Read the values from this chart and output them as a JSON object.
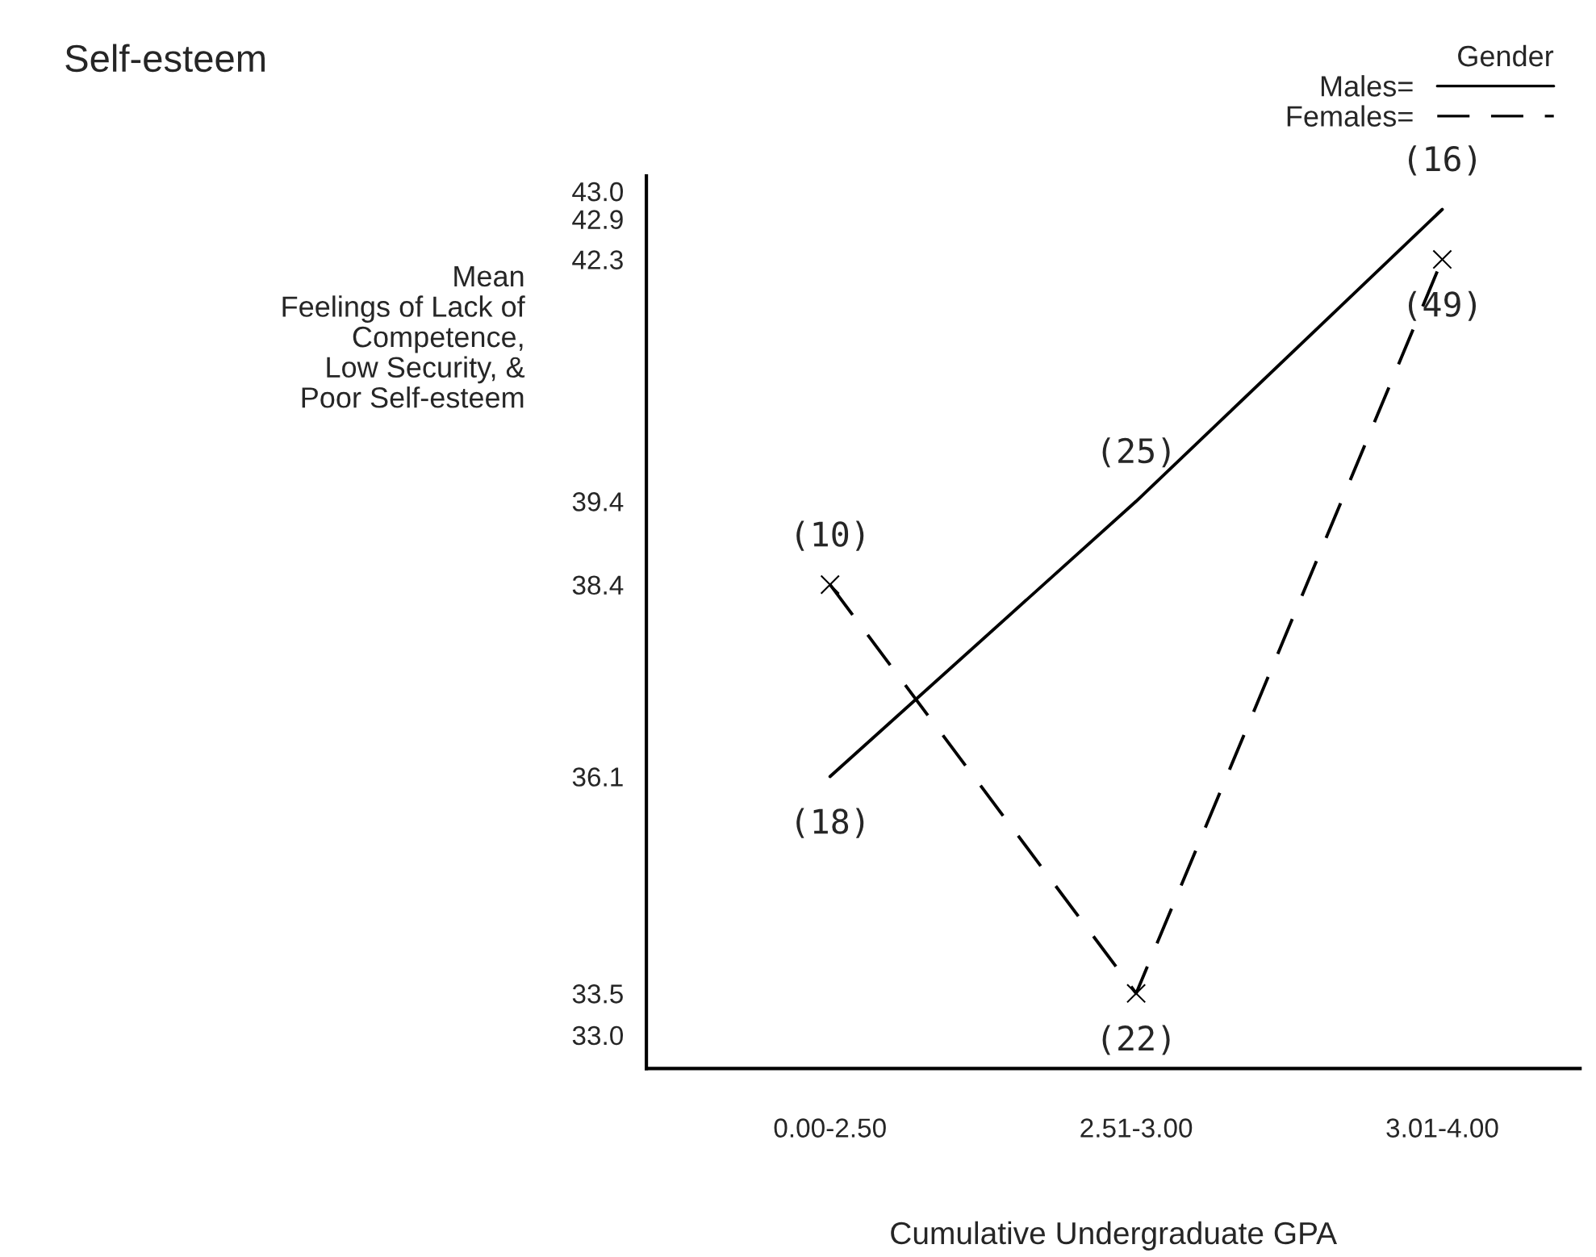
{
  "chart_data": {
    "type": "line",
    "title": "Self-esteem",
    "xlabel": "Cumulative Undergraduate GPA",
    "ylabel": "Mean\nFeelings of Lack of\nCompetence,\nLow Security, &\nPoor Self-esteem",
    "legend_title": "Gender",
    "legend": "top right",
    "categories": [
      "0.00-2.50",
      "2.51-3.00",
      "3.01-4.00"
    ],
    "series": [
      {
        "name": "Males=",
        "color": "#000000",
        "values": [
          36.1,
          39.4,
          42.9
        ],
        "line_style": "solid",
        "marker": "none"
      },
      {
        "name": "Females=",
        "color": "#000000",
        "values": [
          38.4,
          33.5,
          42.3
        ],
        "line_style": "dashed",
        "marker": "cross"
      }
    ],
    "ylim": [
      32.6,
      43.3
    ],
    "yticks": [
      {
        "value": 33.0,
        "label": "33.0"
      },
      {
        "value": 33.5,
        "label": "33.5"
      },
      {
        "value": 36.1,
        "label": "36.1"
      },
      {
        "value": 38.4,
        "label": "38.4"
      },
      {
        "value": 39.4,
        "label": "39.4"
      },
      {
        "value": 42.3,
        "label": "42.3"
      },
      {
        "value": 42.9,
        "label": "42.9"
      },
      {
        "value": 43.0,
        "label": "43.0"
      }
    ],
    "grid": false,
    "annotations": [
      {
        "text": "(18)",
        "x": "0.00-2.50",
        "y": 36.1
      },
      {
        "text": "(10)",
        "x": "0.00-2.50",
        "y": 38.4
      },
      {
        "text": "(25)",
        "x": "2.51-3.00",
        "y": 39.4
      },
      {
        "text": "(22)",
        "x": "2.51-3.00",
        "y": 33.5
      },
      {
        "text": "(16)",
        "x": "3.01-4.00",
        "y": 42.9
      },
      {
        "text": "(49)",
        "x": "3.01-4.00",
        "y": 42.3
      }
    ]
  }
}
